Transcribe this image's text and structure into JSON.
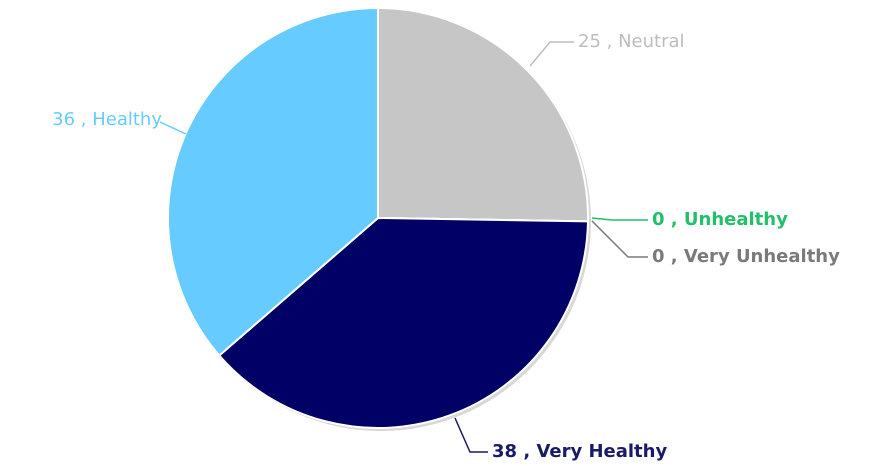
{
  "chart_data": {
    "type": "pie",
    "categories": [
      "Neutral",
      "Unhealthy",
      "Very Unhealthy",
      "Very Healthy",
      "Healthy"
    ],
    "values": [
      25,
      0,
      0,
      38,
      36
    ],
    "colors": [
      "#c6c6c6",
      "#2ecc71",
      "#8a8a8a",
      "#000066",
      "#66ccff"
    ],
    "label_colors": [
      "#bdbdbd",
      "#22c06a",
      "#7a7a7a",
      "#1a1a66",
      "#66ccff"
    ],
    "label_separator": " , "
  }
}
